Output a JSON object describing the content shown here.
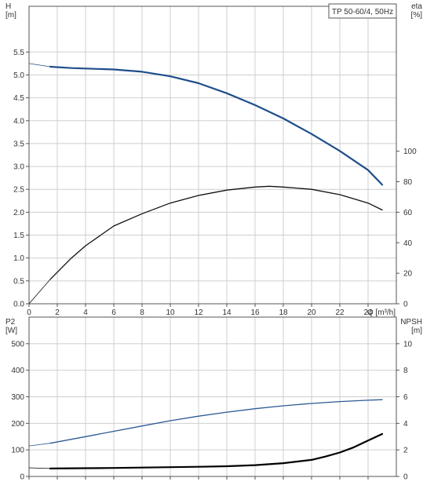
{
  "title": "TP 50-60/4, 50Hz",
  "colors": {
    "grid": "#cfcfcf",
    "axis": "#555555",
    "head_curve": "#1f4e8a",
    "eta_curve": "#111111",
    "p2_curve": "#2b5a94",
    "npsh_curve": "#000000",
    "text": "#333333"
  },
  "chart_data": [
    {
      "type": "line",
      "name": "top-panel",
      "title": "TP 50-60/4, 50Hz",
      "xlabel": "Q [m³/h]",
      "xlim": [
        0,
        26
      ],
      "x_ticks": [
        0,
        2,
        4,
        6,
        8,
        10,
        12,
        14,
        16,
        18,
        20,
        22,
        24
      ],
      "grid": true,
      "left_axis": {
        "label_line1": "H",
        "label_line2": "[m]",
        "lim": [
          0,
          6.5
        ],
        "ticks": [
          0.0,
          0.5,
          1.0,
          1.5,
          2.0,
          2.5,
          3.0,
          3.5,
          4.0,
          4.5,
          5.0,
          5.5
        ],
        "tick_labels": [
          "0.0",
          "0.5",
          "1.0",
          "1.5",
          "2.0",
          "2.5",
          "3.0",
          "3.5",
          "4.0",
          "4.5",
          "5.0",
          "5.5"
        ]
      },
      "right_axis": {
        "label_line1": "eta",
        "label_line2": "[%]",
        "lim": [
          0,
          195
        ],
        "ticks": [
          0,
          20,
          40,
          60,
          80,
          100
        ],
        "tick_labels": [
          "0",
          "20",
          "40",
          "60",
          "80",
          "100"
        ]
      },
      "series": [
        {
          "axis": "left",
          "color_key": "head_curve",
          "width": 2.2,
          "x": [
            0,
            1.5,
            3,
            4,
            6,
            8,
            10,
            12,
            14,
            16,
            18,
            20,
            22,
            24,
            25
          ],
          "y": [
            5.25,
            5.18,
            5.15,
            5.14,
            5.12,
            5.07,
            4.97,
            4.82,
            4.6,
            4.34,
            4.05,
            3.71,
            3.34,
            2.92,
            2.6
          ]
        },
        {
          "axis": "right",
          "color_key": "eta_curve",
          "width": 1.3,
          "x": [
            0,
            1.5,
            3,
            4,
            6,
            8,
            10,
            12,
            14,
            16,
            17,
            18,
            20,
            22,
            24,
            25
          ],
          "y": [
            0,
            16,
            30,
            38,
            51,
            59,
            66,
            71,
            74.5,
            76.5,
            77,
            76.5,
            75,
            71.5,
            66,
            61.5
          ]
        }
      ]
    },
    {
      "type": "line",
      "name": "bottom-panel",
      "xlim": [
        0,
        26
      ],
      "x_ticks": [
        0,
        2,
        4,
        6,
        8,
        10,
        12,
        14,
        16,
        18,
        20,
        22,
        24
      ],
      "grid": true,
      "left_axis": {
        "label_line1": "P2",
        "label_line2": "[W]",
        "lim": [
          0,
          600
        ],
        "ticks": [
          0,
          100,
          200,
          300,
          400,
          500
        ],
        "tick_labels": [
          "0",
          "100",
          "200",
          "300",
          "400",
          "500"
        ]
      },
      "right_axis": {
        "label_line1": "NPSH",
        "label_line2": "[m]",
        "lim": [
          0,
          12
        ],
        "ticks": [
          0,
          2,
          4,
          6,
          8,
          10
        ],
        "tick_labels": [
          "0",
          "2",
          "4",
          "6",
          "8",
          "10"
        ]
      },
      "series": [
        {
          "axis": "left",
          "color_key": "p2_curve",
          "width": 1.3,
          "x": [
            0,
            1.5,
            4,
            6,
            8,
            10,
            12,
            14,
            16,
            18,
            20,
            22,
            24,
            25
          ],
          "y": [
            115,
            125,
            150,
            170,
            190,
            210,
            227,
            242,
            255,
            266,
            275,
            282,
            287,
            289
          ]
        },
        {
          "axis": "right",
          "color_key": "npsh_curve",
          "width": 2.2,
          "x": [
            0,
            1.5,
            4,
            6,
            8,
            10,
            12,
            14,
            16,
            18,
            20,
            21,
            22,
            23,
            24,
            25
          ],
          "y": [
            0.65,
            0.6,
            0.62,
            0.64,
            0.67,
            0.7,
            0.73,
            0.77,
            0.85,
            1.0,
            1.25,
            1.5,
            1.8,
            2.2,
            2.7,
            3.2
          ]
        }
      ]
    }
  ]
}
